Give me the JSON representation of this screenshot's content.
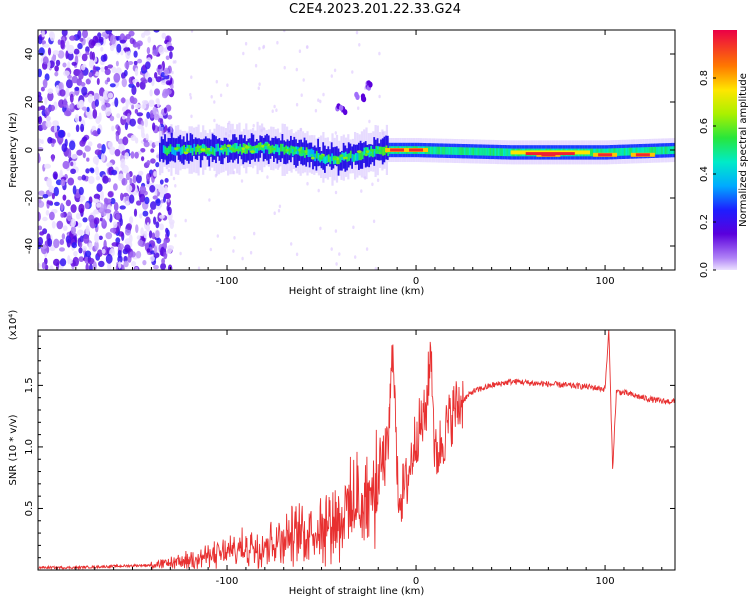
{
  "title": "C2E4.2023.201.22.33.G24",
  "chart_data": [
    {
      "type": "heatmap",
      "xlabel": "Height of straight line (km)",
      "ylabel": "Frequency (Hz)",
      "xlim": [
        -200,
        137
      ],
      "ylim": [
        -50,
        50
      ],
      "xticks": [
        -100,
        0,
        100
      ],
      "yticks": [
        -40,
        -20,
        0,
        20,
        40
      ],
      "colorbar": {
        "label": "Normalized spectral amplitude",
        "range": [
          0,
          1
        ],
        "ticks": [
          "0.0",
          "0.2",
          "0.4",
          "0.6",
          "0.8"
        ]
      },
      "features": {
        "noise_region_x": [
          -200,
          -135
        ],
        "main_track": [
          [
            -135,
            0
          ],
          [
            -110,
            0
          ],
          [
            -80,
            1
          ],
          [
            -60,
            -1
          ],
          [
            -45,
            -4
          ],
          [
            -30,
            -2
          ],
          [
            -20,
            0
          ],
          [
            0,
            0
          ],
          [
            50,
            -1
          ],
          [
            100,
            -1
          ],
          [
            137,
            0
          ]
        ],
        "branch": [
          [
            -40,
            17
          ],
          [
            -30,
            22
          ],
          [
            -25,
            27
          ]
        ],
        "peak_points": [
          [
            -10,
            0
          ],
          [
            0,
            0
          ],
          [
            70,
            -2
          ],
          [
            100,
            -2
          ],
          [
            120,
            -2
          ]
        ]
      },
      "grid": false
    },
    {
      "type": "line",
      "xlabel": "Height of straight line (km)",
      "ylabel": "SNR (10 * v/v)",
      "yscale_label": "(x10⁴)",
      "xlim": [
        -200,
        137
      ],
      "ylim": [
        0,
        1.95
      ],
      "xticks": [
        -100,
        0,
        100
      ],
      "yticks": [
        "0.5",
        "1.0",
        "1.5"
      ],
      "series": [
        {
          "color": "#e83030",
          "x": [
            -200,
            -180,
            -160,
            -140,
            -130,
            -120,
            -110,
            -100,
            -90,
            -80,
            -70,
            -60,
            -50,
            -40,
            -30,
            -25,
            -20,
            -15,
            -12,
            -10,
            -8,
            -5,
            0,
            5,
            8,
            10,
            15,
            20,
            25,
            30,
            40,
            50,
            55,
            60,
            70,
            80,
            90,
            100,
            102,
            104,
            106,
            110,
            120,
            130,
            137
          ],
          "y": [
            0.02,
            0.02,
            0.03,
            0.04,
            0.07,
            0.1,
            0.14,
            0.18,
            0.22,
            0.27,
            0.32,
            0.38,
            0.45,
            0.55,
            0.68,
            0.75,
            0.8,
            0.95,
            1.88,
            0.7,
            0.6,
            0.7,
            1.1,
            1.25,
            1.82,
            0.9,
            1.1,
            1.3,
            1.38,
            1.45,
            1.5,
            1.53,
            1.53,
            1.52,
            1.51,
            1.5,
            1.49,
            1.47,
            1.95,
            0.82,
            1.45,
            1.44,
            1.4,
            1.37,
            1.37
          ]
        }
      ]
    }
  ]
}
